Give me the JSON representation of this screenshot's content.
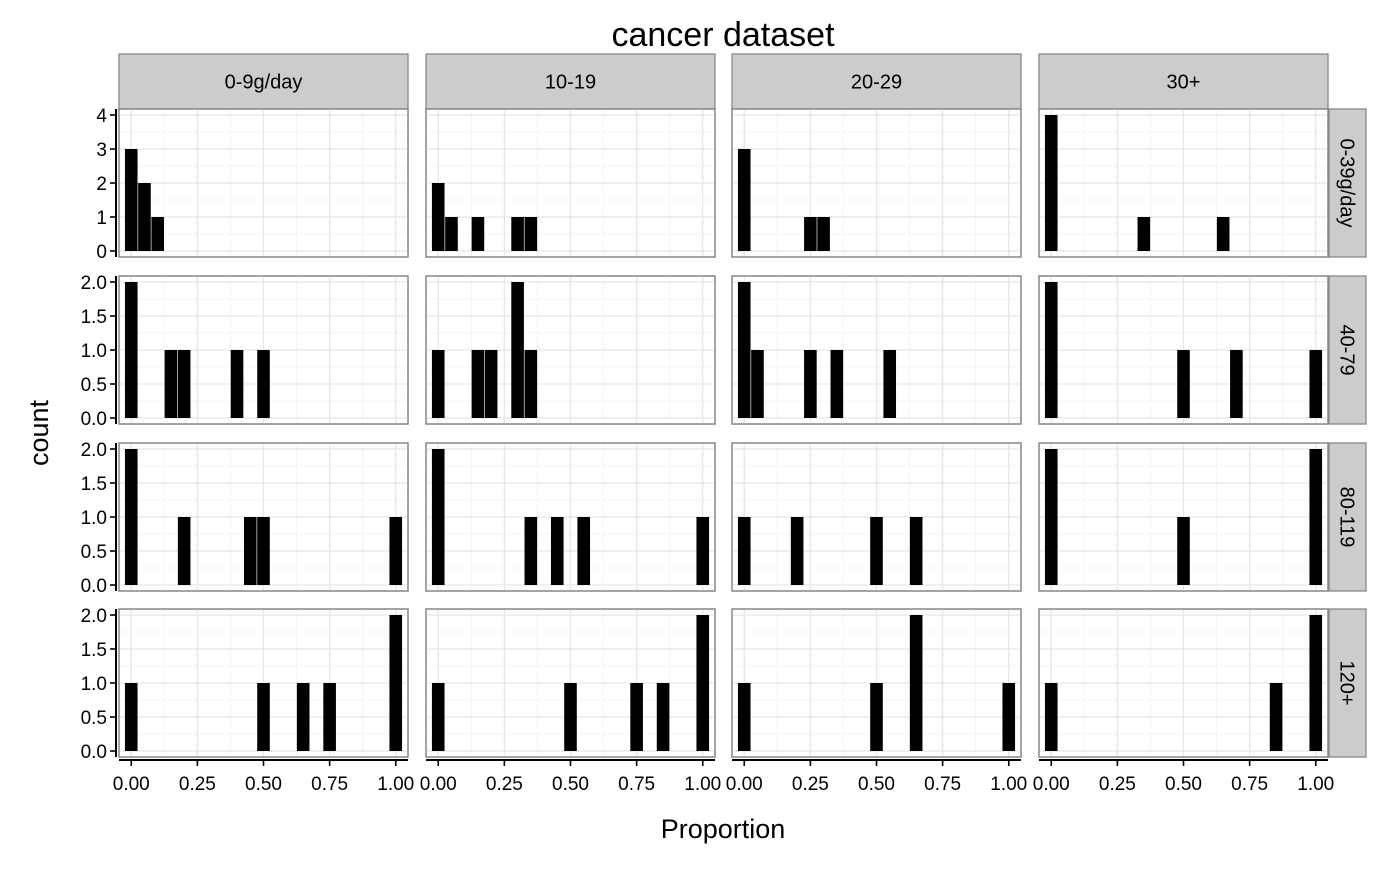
{
  "chart_data": {
    "type": "bar",
    "title": "cancer dataset",
    "xlabel": "Proportion",
    "ylabel": "count",
    "column_facets": [
      "0-9g/day",
      "10-19",
      "20-29",
      "30+"
    ],
    "row_facets": [
      "0-39g/day",
      "40-79",
      "80-119",
      "120+"
    ],
    "xlim": [
      0,
      1
    ],
    "x_ticks": [
      "0.00",
      "0.25",
      "0.50",
      "0.75",
      "1.00"
    ],
    "bin_width": 0.0476,
    "grid": true,
    "rows": [
      {
        "row": "0-39g/day",
        "ylim": [
          0,
          4
        ],
        "y_ticks": [
          "0",
          "1",
          "2",
          "3",
          "4"
        ],
        "panels": [
          {
            "col": "0-9g/day",
            "bins": [
              {
                "x": 0.0,
                "count": 3
              },
              {
                "x": 0.05,
                "count": 2
              },
              {
                "x": 0.1,
                "count": 1
              }
            ]
          },
          {
            "col": "10-19",
            "bins": [
              {
                "x": 0.0,
                "count": 2
              },
              {
                "x": 0.05,
                "count": 1
              },
              {
                "x": 0.15,
                "count": 1
              },
              {
                "x": 0.3,
                "count": 1
              },
              {
                "x": 0.35,
                "count": 1
              }
            ]
          },
          {
            "col": "20-29",
            "bins": [
              {
                "x": 0.0,
                "count": 3
              },
              {
                "x": 0.25,
                "count": 1
              },
              {
                "x": 0.3,
                "count": 1
              }
            ]
          },
          {
            "col": "30+",
            "bins": [
              {
                "x": 0.0,
                "count": 4
              },
              {
                "x": 0.35,
                "count": 1
              },
              {
                "x": 0.65,
                "count": 1
              }
            ]
          }
        ]
      },
      {
        "row": "40-79",
        "ylim": [
          0,
          2
        ],
        "y_ticks": [
          "0.0",
          "0.5",
          "1.0",
          "1.5",
          "2.0"
        ],
        "panels": [
          {
            "col": "0-9g/day",
            "bins": [
              {
                "x": 0.0,
                "count": 2
              },
              {
                "x": 0.15,
                "count": 1
              },
              {
                "x": 0.2,
                "count": 1
              },
              {
                "x": 0.4,
                "count": 1
              },
              {
                "x": 0.5,
                "count": 1
              }
            ]
          },
          {
            "col": "10-19",
            "bins": [
              {
                "x": 0.0,
                "count": 1
              },
              {
                "x": 0.15,
                "count": 1
              },
              {
                "x": 0.2,
                "count": 1
              },
              {
                "x": 0.3,
                "count": 2
              },
              {
                "x": 0.35,
                "count": 1
              }
            ]
          },
          {
            "col": "20-29",
            "bins": [
              {
                "x": 0.0,
                "count": 2
              },
              {
                "x": 0.05,
                "count": 1
              },
              {
                "x": 0.25,
                "count": 1
              },
              {
                "x": 0.35,
                "count": 1
              },
              {
                "x": 0.55,
                "count": 1
              }
            ]
          },
          {
            "col": "30+",
            "bins": [
              {
                "x": 0.0,
                "count": 2
              },
              {
                "x": 0.5,
                "count": 1
              },
              {
                "x": 0.7,
                "count": 1
              },
              {
                "x": 1.0,
                "count": 1
              }
            ]
          }
        ]
      },
      {
        "row": "80-119",
        "ylim": [
          0,
          2
        ],
        "y_ticks": [
          "0.0",
          "0.5",
          "1.0",
          "1.5",
          "2.0"
        ],
        "panels": [
          {
            "col": "0-9g/day",
            "bins": [
              {
                "x": 0.0,
                "count": 2
              },
              {
                "x": 0.2,
                "count": 1
              },
              {
                "x": 0.45,
                "count": 1
              },
              {
                "x": 0.5,
                "count": 1
              },
              {
                "x": 1.0,
                "count": 1
              }
            ]
          },
          {
            "col": "10-19",
            "bins": [
              {
                "x": 0.0,
                "count": 2
              },
              {
                "x": 0.35,
                "count": 1
              },
              {
                "x": 0.45,
                "count": 1
              },
              {
                "x": 0.55,
                "count": 1
              },
              {
                "x": 1.0,
                "count": 1
              }
            ]
          },
          {
            "col": "20-29",
            "bins": [
              {
                "x": 0.0,
                "count": 1
              },
              {
                "x": 0.2,
                "count": 1
              },
              {
                "x": 0.5,
                "count": 1
              },
              {
                "x": 0.65,
                "count": 1
              }
            ]
          },
          {
            "col": "30+",
            "bins": [
              {
                "x": 0.0,
                "count": 2
              },
              {
                "x": 0.5,
                "count": 1
              },
              {
                "x": 1.0,
                "count": 2
              }
            ]
          }
        ]
      },
      {
        "row": "120+",
        "ylim": [
          0,
          2
        ],
        "y_ticks": [
          "0.0",
          "0.5",
          "1.0",
          "1.5",
          "2.0"
        ],
        "panels": [
          {
            "col": "0-9g/day",
            "bins": [
              {
                "x": 0.0,
                "count": 1
              },
              {
                "x": 0.5,
                "count": 1
              },
              {
                "x": 0.65,
                "count": 1
              },
              {
                "x": 0.75,
                "count": 1
              },
              {
                "x": 1.0,
                "count": 2
              }
            ]
          },
          {
            "col": "10-19",
            "bins": [
              {
                "x": 0.0,
                "count": 1
              },
              {
                "x": 0.5,
                "count": 1
              },
              {
                "x": 0.75,
                "count": 1
              },
              {
                "x": 0.85,
                "count": 1
              },
              {
                "x": 1.0,
                "count": 2
              }
            ]
          },
          {
            "col": "20-29",
            "bins": [
              {
                "x": 0.0,
                "count": 1
              },
              {
                "x": 0.5,
                "count": 1
              },
              {
                "x": 0.65,
                "count": 2
              },
              {
                "x": 1.0,
                "count": 1
              }
            ]
          },
          {
            "col": "30+",
            "bins": [
              {
                "x": 0.0,
                "count": 1
              },
              {
                "x": 0.85,
                "count": 1
              },
              {
                "x": 1.0,
                "count": 2
              }
            ]
          }
        ]
      }
    ]
  }
}
